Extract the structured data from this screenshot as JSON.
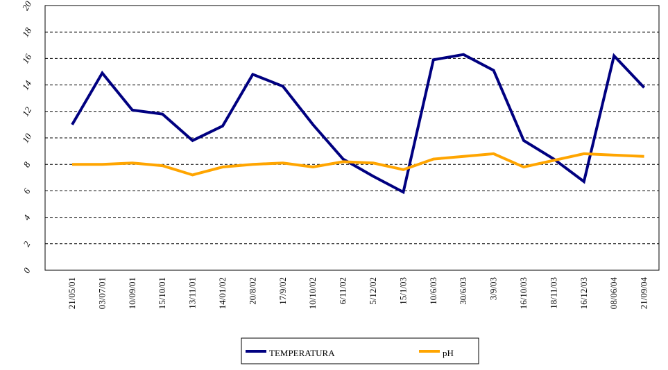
{
  "chart_data": {
    "type": "line",
    "categories": [
      "21/05/01",
      "03/07/01",
      "10/09/01",
      "15/10/01",
      "13/11/01",
      "14/01/02",
      "20/8/02",
      "17/9/02",
      "10/10/02",
      "6/11/02",
      "5/12/02",
      "15/1/03",
      "10/6/03",
      "30/6/03",
      "3/9/03",
      "16/10/03",
      "18/11/03",
      "16/12/03",
      "08/06/04",
      "21/09/04"
    ],
    "series": [
      {
        "name": "TEMPERATURA",
        "color": "#000080",
        "values": [
          11.0,
          14.9,
          12.1,
          11.8,
          9.8,
          10.9,
          14.8,
          13.9,
          11.0,
          8.4,
          7.1,
          5.9,
          15.9,
          16.3,
          15.1,
          9.8,
          8.4,
          6.7,
          16.2,
          13.8
        ]
      },
      {
        "name": "pH",
        "color": "#ffa500",
        "values": [
          8.0,
          8.0,
          8.1,
          7.9,
          7.2,
          7.8,
          8.0,
          8.1,
          7.8,
          8.2,
          8.1,
          7.6,
          8.4,
          8.6,
          8.8,
          7.8,
          8.3,
          8.8,
          8.7,
          8.6
        ]
      }
    ],
    "ylim": [
      0,
      20
    ],
    "yticks": [
      0,
      2,
      4,
      6,
      8,
      10,
      12,
      14,
      16,
      18,
      20
    ],
    "grid": true,
    "legend": "bottom"
  }
}
